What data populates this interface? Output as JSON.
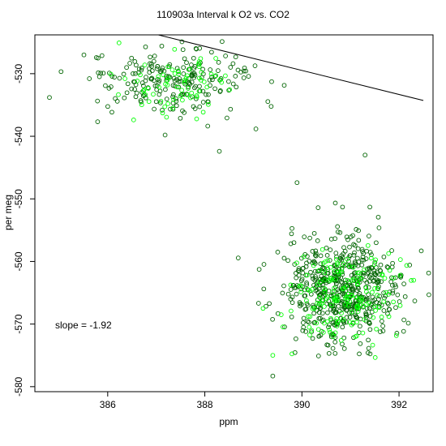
{
  "chart_data": {
    "type": "scatter",
    "title": "110903a   Interval k O2 vs. CO2",
    "xlabel": "ppm",
    "ylabel": "per meg",
    "xlim": [
      384.5,
      392.7
    ],
    "ylim": [
      -580.8,
      -523.8
    ],
    "xticks": [
      386,
      388,
      390,
      392
    ],
    "yticks": [
      -530,
      -540,
      -550,
      -560,
      -570,
      -580
    ],
    "grid": false,
    "annotation": "slope =  -1.92",
    "fit_line": {
      "slope": -1.92,
      "x_range": [
        385.8,
        392.5
      ],
      "intercept_at_x": 386.0,
      "y_at_intercept": -521.8
    },
    "series": [
      {
        "color": "#006400",
        "clusters": [
          {
            "center": [
              387.3,
              -531.4
            ],
            "sd": [
              0.85,
              2.8
            ],
            "n": 220
          },
          {
            "center": [
              390.8,
              -564.2
            ],
            "sd": [
              0.6,
              4.2
            ],
            "n": 560
          }
        ],
        "values": [
          [
            384.8,
            -533.8
          ],
          [
            391.3,
            -543.0
          ],
          [
            389.9,
            -547.4
          ],
          [
            389.4,
            -578.3
          ],
          [
            388.3,
            -542.4
          ]
        ]
      },
      {
        "color": "#00ff00",
        "clusters": [
          {
            "center": [
              387.4,
              -532.0
            ],
            "sd": [
              0.6,
              2.4
            ],
            "n": 70
          },
          {
            "center": [
              390.9,
              -565.0
            ],
            "sd": [
              0.55,
              3.6
            ],
            "n": 170
          }
        ],
        "values": [
          [
            389.4,
            -575.0
          ],
          [
            391.1,
            -572.0
          ],
          [
            389.2,
            -567.5
          ]
        ]
      }
    ],
    "colors": {
      "axis": "#000000",
      "fit_line": "#000000"
    }
  }
}
